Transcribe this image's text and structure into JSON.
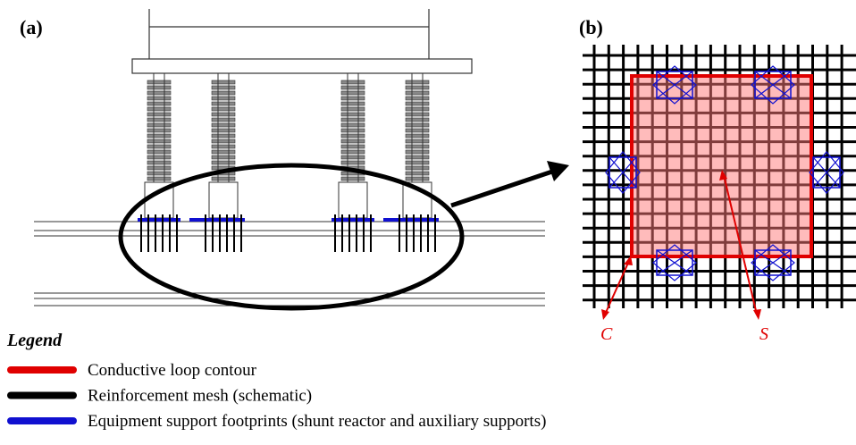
{
  "panel_a": {
    "label": "(a)"
  },
  "panel_b": {
    "label": "(b)",
    "contour_label": "C",
    "surface_label": "S"
  },
  "legend": {
    "title": "Legend",
    "items": [
      {
        "label": "Conductive loop contour",
        "color": "#e00000"
      },
      {
        "label": "Reinforcement mesh (schematic)",
        "color": "#000000"
      },
      {
        "label": "Equipment support footprints (shunt reactor and auxiliary supports)",
        "color": "#1010d0"
      }
    ]
  }
}
